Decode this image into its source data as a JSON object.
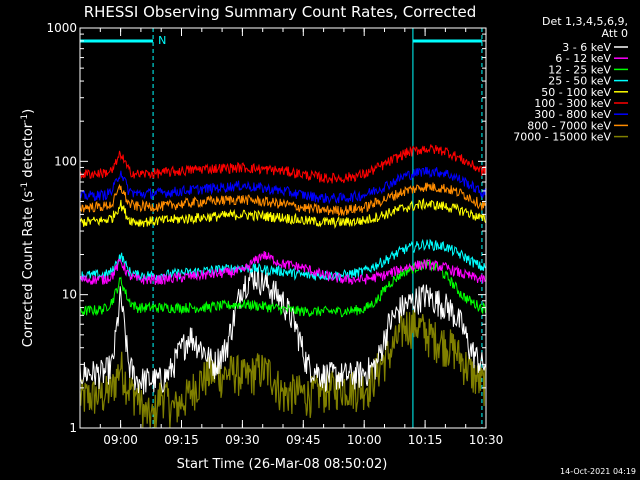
{
  "chart_data": {
    "type": "line",
    "title": "RHESSI Observing Summary Count Rates, Corrected",
    "xlabel": "Start Time (26-Mar-08 08:50:02)",
    "ylabel_main": "Corrected Count Rate (s",
    "ylabel_sup1": "-1",
    "ylabel_mid": " detector",
    "ylabel_sup2": "-1",
    "ylabel_end": ")",
    "y_scale": "log",
    "ylim": [
      1,
      1000
    ],
    "xlim_minutes": [
      0,
      100
    ],
    "x_ticks": [
      {
        "label": "09:00",
        "t": 10
      },
      {
        "label": "09:15",
        "t": 25
      },
      {
        "label": "09:30",
        "t": 40
      },
      {
        "label": "09:45",
        "t": 55
      },
      {
        "label": "10:00",
        "t": 70
      },
      {
        "label": "10:15",
        "t": 85
      },
      {
        "label": "10:30",
        "t": 100
      }
    ],
    "y_ticks": [
      {
        "label": "1",
        "v": 1
      },
      {
        "label": "10",
        "v": 10
      },
      {
        "label": "100",
        "v": 100
      },
      {
        "label": "1000",
        "v": 1000
      }
    ],
    "legend_header": [
      "Det 1,3,4,5,6,9,",
      "Att 0"
    ],
    "legend_placement": "right",
    "series": [
      {
        "name": "3 - 6 keV",
        "color": "#ffffff",
        "t": [
          0,
          6,
          8,
          10,
          12,
          14,
          16,
          20,
          22,
          24,
          27,
          30,
          33,
          36,
          40,
          43,
          46,
          50,
          53,
          56,
          60,
          62,
          64,
          67,
          70,
          73,
          76,
          79,
          82,
          85,
          88,
          91,
          94,
          96,
          99
        ],
        "v": [
          2.6,
          2.6,
          3,
          10,
          3,
          2.3,
          2.3,
          2.3,
          2.6,
          3.5,
          5,
          4,
          3,
          4,
          12,
          14,
          12,
          9,
          6,
          3,
          2.5,
          2.5,
          2.5,
          2.5,
          2.6,
          3,
          6,
          8,
          9,
          10,
          9,
          8,
          6,
          4,
          3
        ]
      },
      {
        "name": "6 - 12 keV",
        "color": "#ff00ff",
        "t": [
          0,
          6,
          8,
          10,
          12,
          14,
          20,
          30,
          40,
          45,
          50,
          55,
          60,
          65,
          70,
          75,
          80,
          85,
          90,
          95,
          99
        ],
        "v": [
          13,
          13,
          14,
          18,
          14,
          13,
          13,
          14,
          15,
          20,
          17,
          16,
          14,
          13,
          13,
          14,
          16,
          17,
          16,
          14,
          13
        ]
      },
      {
        "name": "12 - 25 keV",
        "color": "#00ff00",
        "t": [
          0,
          6,
          8,
          10,
          12,
          14,
          20,
          30,
          40,
          45,
          50,
          55,
          60,
          65,
          70,
          73,
          76,
          80,
          85,
          88,
          91,
          94,
          96,
          99
        ],
        "v": [
          7.5,
          7.8,
          9,
          13,
          9,
          8,
          8,
          8,
          8.5,
          8.2,
          7.8,
          7.5,
          7.5,
          7.5,
          7.8,
          9,
          12,
          15,
          17,
          16,
          13,
          10,
          9,
          8
        ]
      },
      {
        "name": "25 - 50 keV",
        "color": "#00ffff",
        "t": [
          0,
          6,
          8,
          10,
          12,
          14,
          20,
          30,
          40,
          50,
          55,
          60,
          65,
          70,
          75,
          80,
          85,
          90,
          95,
          99
        ],
        "v": [
          14,
          14,
          15,
          20,
          15,
          14,
          14,
          15,
          16,
          15,
          14,
          14,
          14,
          15,
          18,
          22,
          24,
          23,
          19,
          16
        ]
      },
      {
        "name": "50 - 100 keV",
        "color": "#ffff00",
        "t": [
          0,
          6,
          8,
          10,
          12,
          14,
          20,
          30,
          40,
          50,
          55,
          60,
          65,
          70,
          75,
          80,
          85,
          90,
          95,
          99
        ],
        "v": [
          35,
          36,
          38,
          48,
          37,
          35,
          36,
          38,
          40,
          38,
          36,
          35,
          35,
          36,
          40,
          45,
          48,
          46,
          42,
          37
        ]
      },
      {
        "name": "100 - 300 keV",
        "color": "#ff0000",
        "t": [
          0,
          6,
          8,
          10,
          12,
          14,
          20,
          30,
          40,
          50,
          55,
          60,
          65,
          70,
          75,
          80,
          85,
          90,
          95,
          99
        ],
        "v": [
          80,
          82,
          85,
          115,
          85,
          80,
          82,
          88,
          90,
          85,
          80,
          75,
          75,
          80,
          95,
          115,
          125,
          120,
          100,
          85
        ]
      },
      {
        "name": "300 - 800 keV",
        "color": "#0000ff",
        "t": [
          0,
          6,
          8,
          10,
          12,
          14,
          20,
          30,
          40,
          50,
          55,
          60,
          65,
          70,
          75,
          80,
          85,
          90,
          95,
          99
        ],
        "v": [
          55,
          56,
          60,
          85,
          60,
          57,
          58,
          62,
          66,
          60,
          56,
          53,
          53,
          56,
          65,
          78,
          85,
          82,
          70,
          58
        ]
      },
      {
        "name": "800 - 7000 keV",
        "color": "#ff8c00",
        "t": [
          0,
          6,
          8,
          10,
          12,
          14,
          20,
          30,
          40,
          50,
          55,
          60,
          65,
          70,
          75,
          80,
          85,
          90,
          95,
          99
        ],
        "v": [
          45,
          46,
          48,
          65,
          48,
          46,
          46,
          50,
          52,
          48,
          45,
          43,
          43,
          45,
          52,
          60,
          65,
          63,
          56,
          47
        ]
      },
      {
        "name": "7000 - 15000 keV",
        "color": "#808000",
        "t": [
          0,
          6,
          8,
          10,
          12,
          14,
          16,
          18,
          20,
          23,
          26,
          29,
          32,
          35,
          38,
          41,
          44,
          47,
          50,
          53,
          56,
          59,
          62,
          65,
          68,
          71,
          74,
          77,
          80,
          83,
          86,
          89,
          92,
          95,
          98,
          99
        ],
        "v": [
          1.7,
          1.8,
          2,
          3,
          2,
          1.8,
          1.3,
          1.2,
          1.9,
          1.4,
          1.7,
          2.2,
          2.6,
          2.5,
          2.7,
          2.4,
          2.8,
          2.6,
          1.8,
          1.9,
          1.8,
          1.9,
          2.0,
          2.1,
          2.0,
          2.1,
          3,
          4,
          6,
          6,
          5,
          4.5,
          4,
          3,
          2.3,
          2.2
        ]
      }
    ],
    "attenuator_bars": [
      {
        "t0": 0,
        "t1": 18
      },
      {
        "t0": 82,
        "t1": 99
      }
    ],
    "night_marker_label": "N",
    "vertical_markers_minutes": [
      0,
      18,
      82,
      99
    ],
    "timestamp": "14-Oct-2021 04:19"
  }
}
